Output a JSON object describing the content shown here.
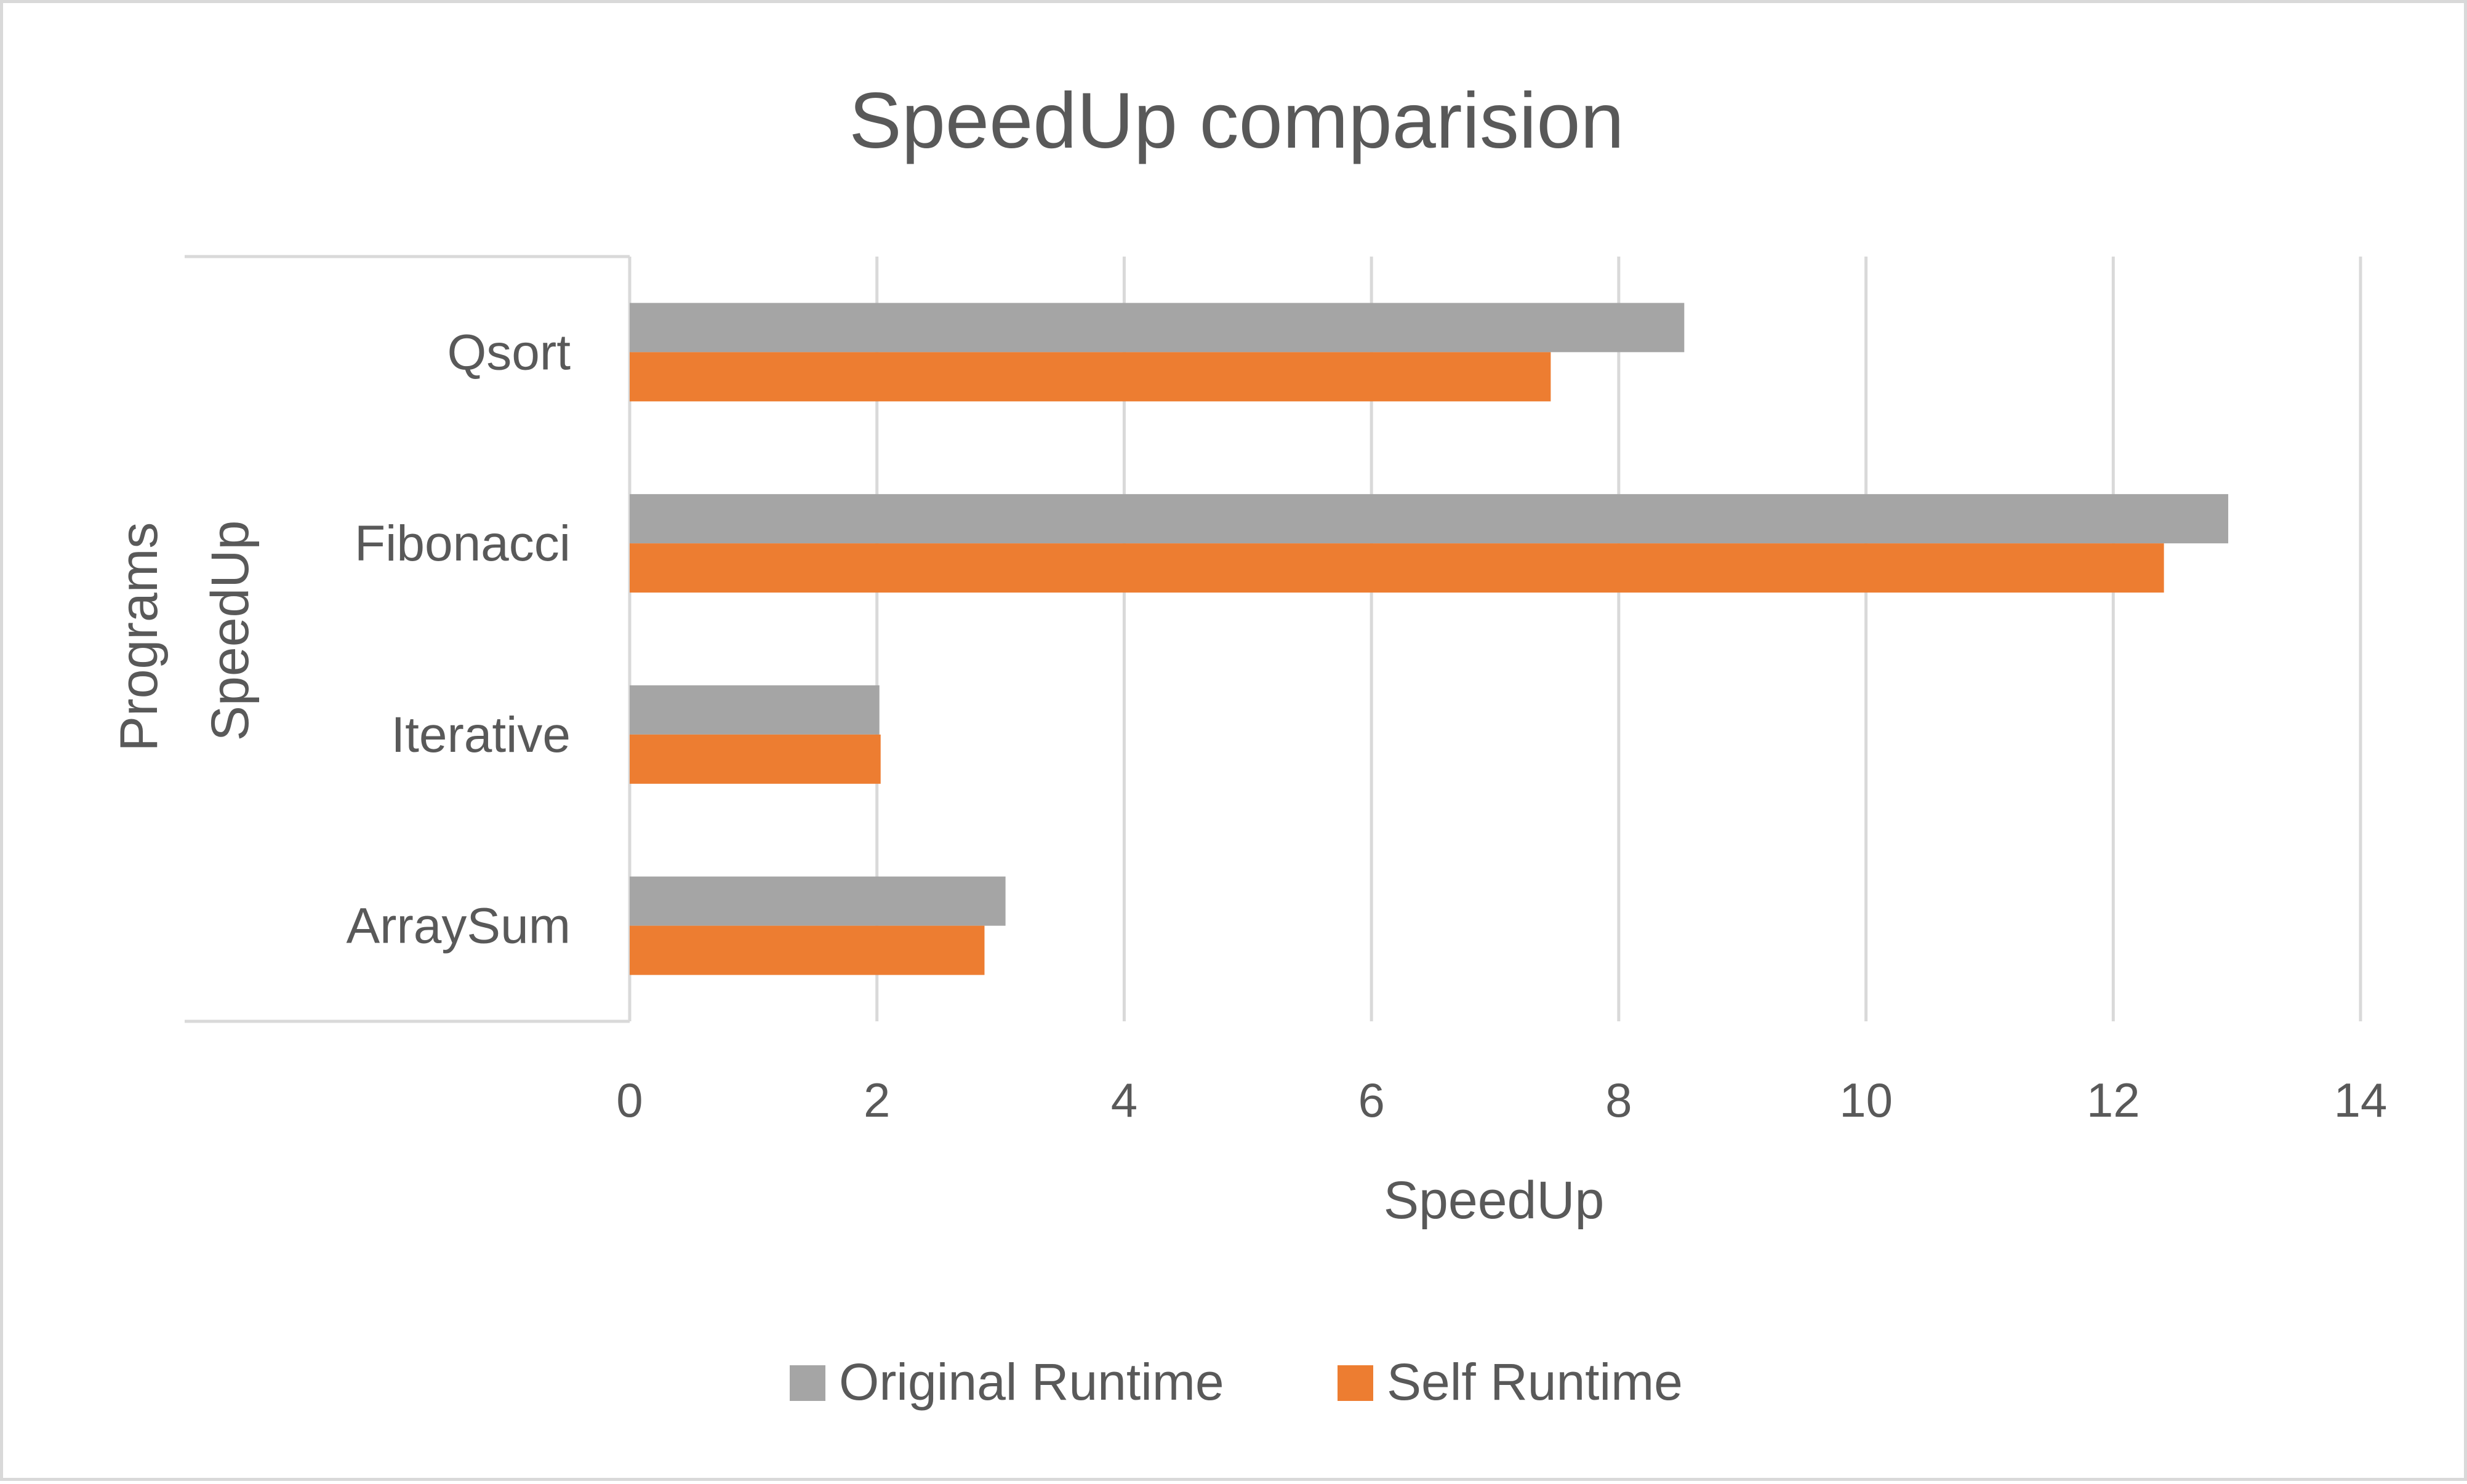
{
  "chart_data": {
    "type": "bar",
    "orientation": "horizontal",
    "title": "SpeedUp comparision",
    "xlabel": "SpeedUp",
    "ylabel_outer": "Programs",
    "ylabel_inner": "SpeedUp",
    "categories": [
      "Qsort",
      "Fibonacci",
      "Iterative",
      "ArraySum"
    ],
    "series": [
      {
        "name": "Original Runtime",
        "values": [
          8.53,
          12.93,
          2.02,
          3.04
        ],
        "color": "#a5a5a5"
      },
      {
        "name": "Self Runtime",
        "values": [
          7.45,
          12.41,
          2.03,
          2.87
        ],
        "color": "#ed7d31"
      }
    ],
    "xlim": [
      0,
      14
    ],
    "xticks": [
      0,
      2,
      4,
      6,
      8,
      10,
      12,
      14
    ],
    "grid": true,
    "legend_position": "bottom"
  }
}
